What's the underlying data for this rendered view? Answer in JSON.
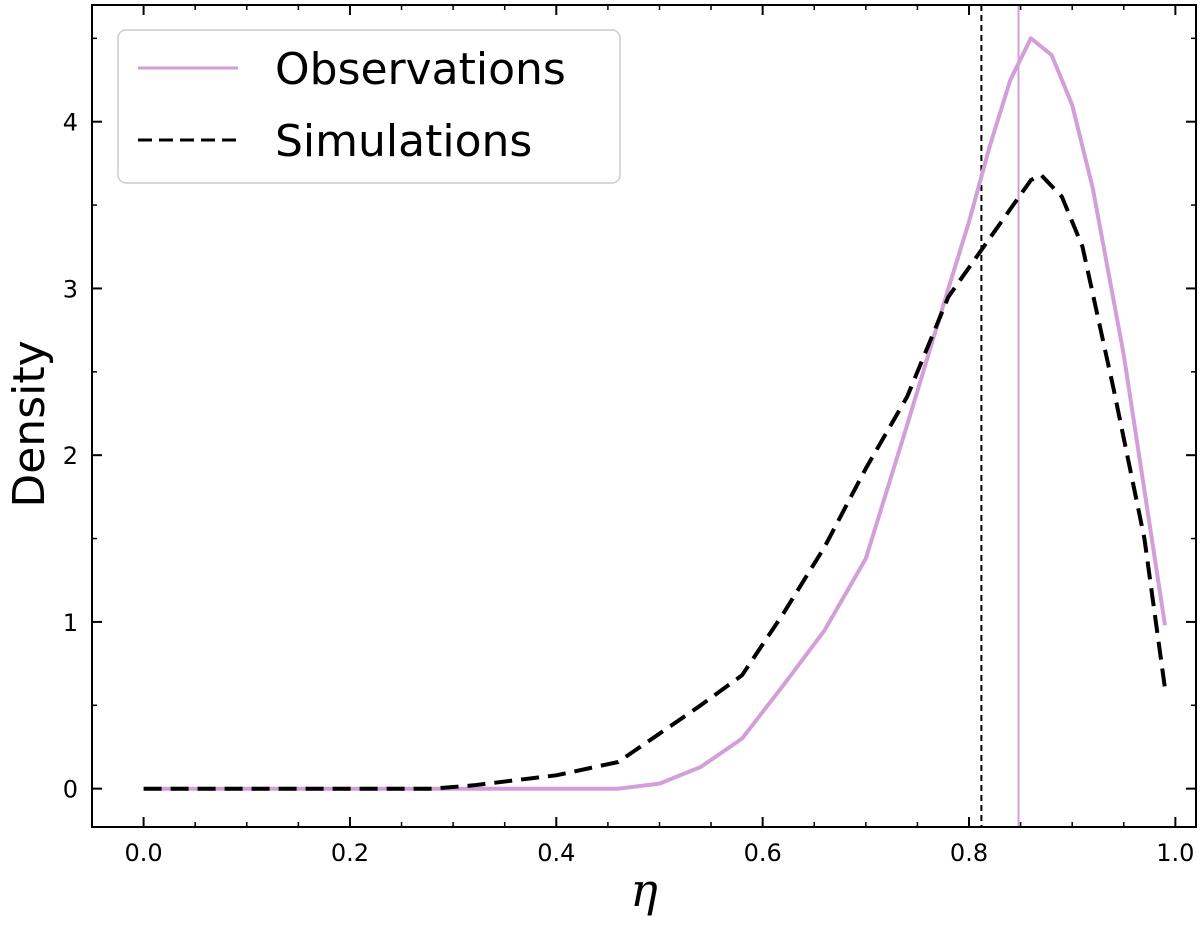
{
  "chart_data": {
    "type": "line",
    "xlabel": "η",
    "ylabel": "Density",
    "xlim": [
      -0.05,
      1.02
    ],
    "ylim": [
      -0.23,
      4.7
    ],
    "x_ticks": [
      0.0,
      0.2,
      0.4,
      0.6,
      0.8,
      1.0
    ],
    "x_tick_labels": [
      "0.0",
      "0.2",
      "0.4",
      "0.6",
      "0.8",
      "1.0"
    ],
    "y_ticks": [
      0,
      1,
      2,
      3,
      4
    ],
    "y_tick_labels": [
      "0",
      "1",
      "2",
      "3",
      "4"
    ],
    "grid": false,
    "legend_position": "top-left",
    "series": [
      {
        "name": "Observations",
        "color": "#d39fd8",
        "style": "solid",
        "points": [
          [
            0.0,
            0.0
          ],
          [
            0.3,
            0.0
          ],
          [
            0.46,
            0.0
          ],
          [
            0.5,
            0.03
          ],
          [
            0.54,
            0.13
          ],
          [
            0.58,
            0.3
          ],
          [
            0.62,
            0.62
          ],
          [
            0.66,
            0.95
          ],
          [
            0.7,
            1.38
          ],
          [
            0.74,
            2.18
          ],
          [
            0.78,
            3.0
          ],
          [
            0.8,
            3.4
          ],
          [
            0.82,
            3.85
          ],
          [
            0.84,
            4.25
          ],
          [
            0.86,
            4.5
          ],
          [
            0.88,
            4.4
          ],
          [
            0.9,
            4.1
          ],
          [
            0.92,
            3.6
          ],
          [
            0.95,
            2.6
          ],
          [
            0.99,
            0.98
          ]
        ]
      },
      {
        "name": "Simulations",
        "color": "#000000",
        "style": "dashed",
        "points": [
          [
            0.0,
            0.0
          ],
          [
            0.28,
            0.0
          ],
          [
            0.32,
            0.02
          ],
          [
            0.36,
            0.05
          ],
          [
            0.4,
            0.08
          ],
          [
            0.46,
            0.16
          ],
          [
            0.5,
            0.33
          ],
          [
            0.54,
            0.5
          ],
          [
            0.58,
            0.68
          ],
          [
            0.62,
            1.05
          ],
          [
            0.66,
            1.45
          ],
          [
            0.7,
            1.92
          ],
          [
            0.74,
            2.35
          ],
          [
            0.78,
            2.95
          ],
          [
            0.82,
            3.3
          ],
          [
            0.86,
            3.65
          ],
          [
            0.87,
            3.68
          ],
          [
            0.89,
            3.55
          ],
          [
            0.91,
            3.25
          ],
          [
            0.94,
            2.4
          ],
          [
            0.97,
            1.5
          ],
          [
            0.99,
            0.6
          ]
        ]
      }
    ],
    "vertical_lines": [
      {
        "x": 0.812,
        "color": "#000000",
        "style": "dashed"
      },
      {
        "x": 0.848,
        "color": "#d39fd8",
        "style": "solid"
      }
    ]
  }
}
